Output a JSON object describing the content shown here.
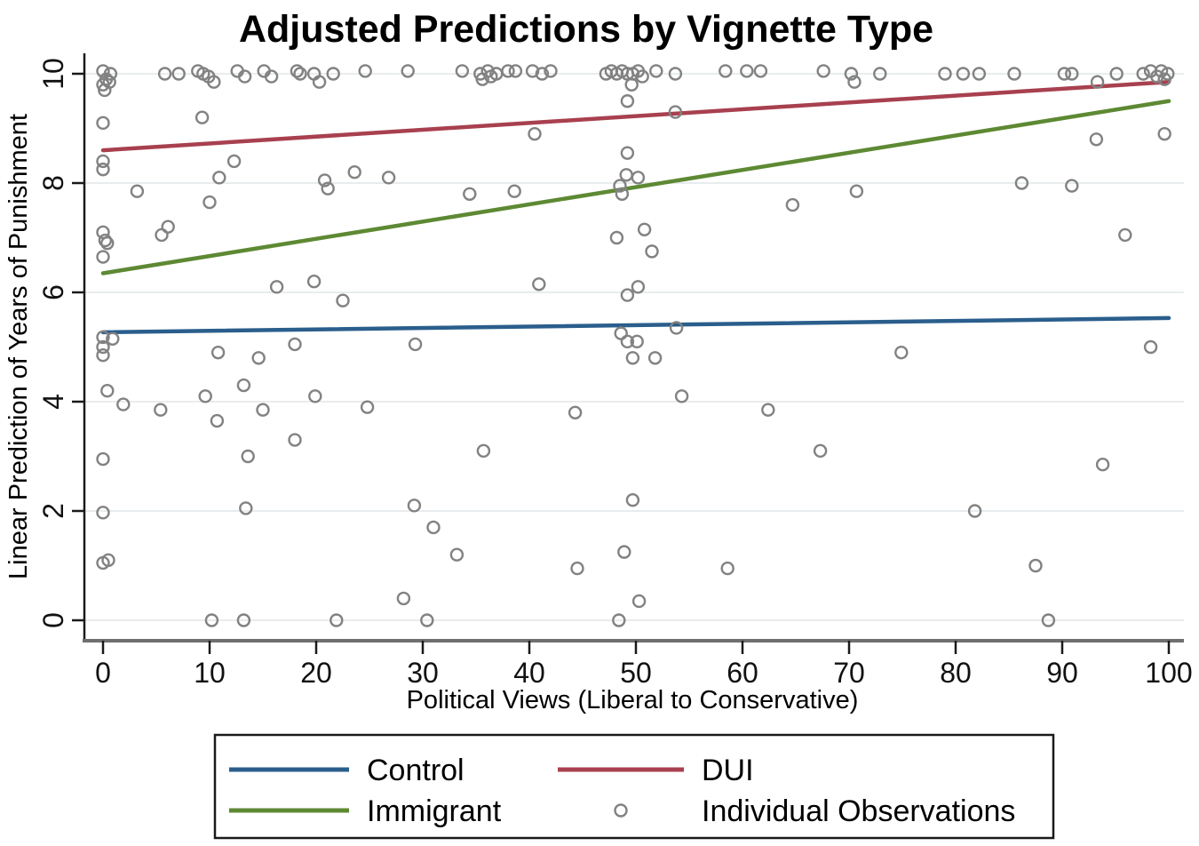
{
  "chart_data": {
    "type": "scatter",
    "title": "Adjusted Predictions by Vignette Type",
    "xlabel": "Political Views (Liberal to Conservative)",
    "ylabel": "Linear Prediction of Years of Punishment",
    "xlim": [
      0,
      100
    ],
    "ylim": [
      0,
      10
    ],
    "xticks": [
      0,
      10,
      20,
      30,
      40,
      50,
      60,
      70,
      80,
      90,
      100
    ],
    "yticks": [
      0,
      2,
      4,
      6,
      8,
      10
    ],
    "grid": "horizontal-only",
    "legend_position": "bottom-center-boxed",
    "series": [
      {
        "name": "Control",
        "type": "line",
        "color": "#2a5e8c",
        "endpoints": [
          [
            0,
            5.27
          ],
          [
            100,
            5.53
          ]
        ]
      },
      {
        "name": "DUI",
        "type": "line",
        "color": "#a8404f",
        "endpoints": [
          [
            0,
            8.6
          ],
          [
            100,
            9.85
          ]
        ]
      },
      {
        "name": "Immigrant",
        "type": "line",
        "color": "#5d8933",
        "endpoints": [
          [
            0,
            6.35
          ],
          [
            100,
            9.5
          ]
        ]
      },
      {
        "name": "Individual Observations",
        "type": "scatter",
        "color": "#828282",
        "points": [
          [
            0,
            10.05
          ],
          [
            0.7,
            10
          ],
          [
            0.3,
            9.9
          ],
          [
            0.6,
            9.85
          ],
          [
            0,
            9.8
          ],
          [
            0.15,
            9.7
          ],
          [
            5.8,
            10
          ],
          [
            7.1,
            10
          ],
          [
            8.9,
            10.05
          ],
          [
            9.4,
            10
          ],
          [
            9.9,
            9.95
          ],
          [
            10.4,
            9.85
          ],
          [
            12.6,
            10.05
          ],
          [
            13.3,
            9.95
          ],
          [
            15.1,
            10.05
          ],
          [
            15.8,
            9.95
          ],
          [
            18.2,
            10.05
          ],
          [
            18.5,
            10
          ],
          [
            19.8,
            10
          ],
          [
            20.3,
            9.85
          ],
          [
            21.6,
            10
          ],
          [
            24.6,
            10.05
          ],
          [
            28.6,
            10.05
          ],
          [
            33.7,
            10.05
          ],
          [
            35.4,
            10
          ],
          [
            35.6,
            9.9
          ],
          [
            36.1,
            10.05
          ],
          [
            36.4,
            9.95
          ],
          [
            36.9,
            10
          ],
          [
            38,
            10.05
          ],
          [
            38.7,
            10.05
          ],
          [
            40.3,
            10.05
          ],
          [
            41.2,
            10
          ],
          [
            42,
            10.05
          ],
          [
            47.2,
            10
          ],
          [
            47.7,
            10.05
          ],
          [
            48.2,
            10
          ],
          [
            48.7,
            10.05
          ],
          [
            49.2,
            10
          ],
          [
            49.7,
            10
          ],
          [
            50.2,
            10.05
          ],
          [
            50.6,
            9.95
          ],
          [
            49.6,
            9.8
          ],
          [
            51.9,
            10.05
          ],
          [
            53.7,
            10
          ],
          [
            58.4,
            10.05
          ],
          [
            60.4,
            10.05
          ],
          [
            61.7,
            10.05
          ],
          [
            67.6,
            10.05
          ],
          [
            70.2,
            10
          ],
          [
            70.5,
            9.85
          ],
          [
            72.9,
            10
          ],
          [
            79,
            10
          ],
          [
            80.7,
            10
          ],
          [
            82.2,
            10
          ],
          [
            85.5,
            10
          ],
          [
            90.2,
            10
          ],
          [
            90.9,
            10
          ],
          [
            93.3,
            9.85
          ],
          [
            95.1,
            10
          ],
          [
            97.6,
            10
          ],
          [
            98.3,
            10.05
          ],
          [
            98.9,
            9.95
          ],
          [
            99.3,
            10.05
          ],
          [
            99.6,
            9.9
          ],
          [
            99.9,
            10
          ],
          [
            0,
            9.1
          ],
          [
            9.3,
            9.2
          ],
          [
            49.2,
            9.5
          ],
          [
            53.7,
            9.3
          ],
          [
            0,
            8.4
          ],
          [
            0,
            8.25
          ],
          [
            12.3,
            8.4
          ],
          [
            10.9,
            8.1
          ],
          [
            3.2,
            7.85
          ],
          [
            10,
            7.65
          ],
          [
            20.8,
            8.05
          ],
          [
            21.1,
            7.9
          ],
          [
            23.6,
            8.2
          ],
          [
            26.8,
            8.1
          ],
          [
            40.5,
            8.9
          ],
          [
            49.2,
            8.55
          ],
          [
            49.1,
            8.15
          ],
          [
            50.2,
            8.1
          ],
          [
            48.5,
            7.95
          ],
          [
            48.7,
            7.8
          ],
          [
            34.4,
            7.8
          ],
          [
            38.6,
            7.85
          ],
          [
            64.7,
            7.6
          ],
          [
            70.7,
            7.85
          ],
          [
            86.2,
            8
          ],
          [
            90.9,
            7.95
          ],
          [
            99.6,
            8.9
          ],
          [
            93.2,
            8.8
          ],
          [
            6.1,
            7.2
          ],
          [
            5.5,
            7.05
          ],
          [
            0,
            7.1
          ],
          [
            0.2,
            6.95
          ],
          [
            0.4,
            6.9
          ],
          [
            0,
            6.65
          ],
          [
            50.8,
            7.15
          ],
          [
            48.2,
            7
          ],
          [
            51.5,
            6.75
          ],
          [
            95.9,
            7.05
          ],
          [
            16.3,
            6.1
          ],
          [
            19.8,
            6.2
          ],
          [
            40.9,
            6.15
          ],
          [
            50.2,
            6.1
          ],
          [
            49.2,
            5.95
          ],
          [
            22.5,
            5.85
          ],
          [
            0,
            5.18
          ],
          [
            0.9,
            5.15
          ],
          [
            0,
            5
          ],
          [
            0,
            4.85
          ],
          [
            18,
            5.05
          ],
          [
            29.3,
            5.05
          ],
          [
            48.6,
            5.25
          ],
          [
            53.8,
            5.35
          ],
          [
            49.2,
            5.1
          ],
          [
            50.1,
            5.1
          ],
          [
            49.7,
            4.8
          ],
          [
            51.8,
            4.8
          ],
          [
            10.8,
            4.9
          ],
          [
            14.6,
            4.8
          ],
          [
            74.9,
            4.9
          ],
          [
            98.3,
            5
          ],
          [
            0.4,
            4.2
          ],
          [
            1.9,
            3.95
          ],
          [
            5.4,
            3.85
          ],
          [
            9.6,
            4.1
          ],
          [
            13.2,
            4.3
          ],
          [
            10.7,
            3.65
          ],
          [
            15,
            3.85
          ],
          [
            19.9,
            4.1
          ],
          [
            24.8,
            3.9
          ],
          [
            54.3,
            4.1
          ],
          [
            44.3,
            3.8
          ],
          [
            62.4,
            3.85
          ],
          [
            18,
            3.3
          ],
          [
            35.7,
            3.1
          ],
          [
            67.3,
            3.1
          ],
          [
            13.6,
            3
          ],
          [
            0,
            2.95
          ],
          [
            93.8,
            2.85
          ],
          [
            0,
            1.97
          ],
          [
            13.4,
            2.05
          ],
          [
            29.2,
            2.1
          ],
          [
            49.7,
            2.2
          ],
          [
            81.8,
            2
          ],
          [
            31,
            1.7
          ],
          [
            33.2,
            1.2
          ],
          [
            48.9,
            1.25
          ],
          [
            0,
            1.05
          ],
          [
            0.5,
            1.1
          ],
          [
            44.5,
            0.95
          ],
          [
            58.6,
            0.95
          ],
          [
            87.5,
            1
          ],
          [
            50.3,
            0.35
          ],
          [
            28.2,
            0.4
          ],
          [
            10.2,
            0
          ],
          [
            13.2,
            0
          ],
          [
            21.9,
            0
          ],
          [
            30.4,
            0
          ],
          [
            48.4,
            0
          ],
          [
            88.7,
            0
          ]
        ]
      }
    ],
    "legend_columns": [
      [
        "Control",
        "Immigrant"
      ],
      [
        "DUI",
        "Individual Observations"
      ]
    ]
  },
  "colors": {
    "background": "#ffffff",
    "gridline": "#e8ecee",
    "axis_line": "#6f6f6f",
    "tick_mark": "#1a1a1a",
    "text": "#000000",
    "legend_border": "#1a1a1a",
    "marker_stroke": "#828282"
  }
}
